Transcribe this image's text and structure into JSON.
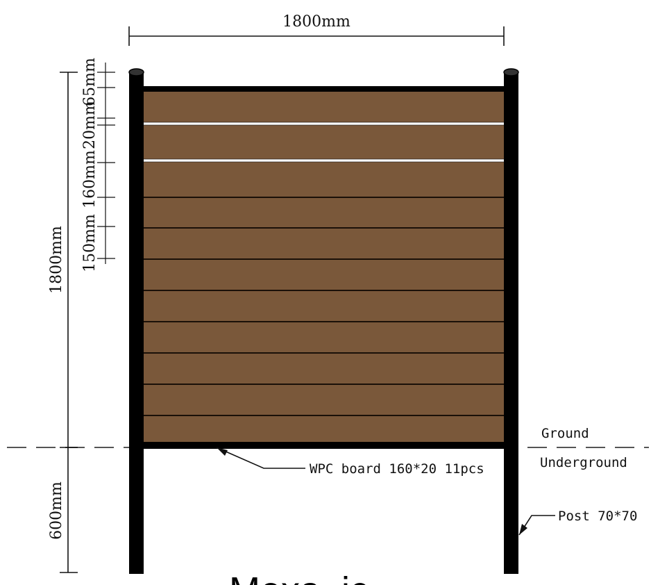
{
  "dimensions": {
    "width_label": "1800mm",
    "height_label": "1800mm",
    "depth_label": "600mm",
    "top_gap_label": "65mm",
    "slot_label": "20mm",
    "board_label": "160mm",
    "spacing_label": "150mm"
  },
  "callouts": {
    "ground": "Ground",
    "underground": "Underground",
    "board": "WPC board 160*20 11pcs",
    "post": "Post 70*70"
  },
  "brand": {
    "text": "Mexa..ic"
  },
  "colors": {
    "board": "#7a583a",
    "post": "#000000",
    "board_line": "#1a1008",
    "slot": "#ffffff"
  },
  "board_count": 11
}
